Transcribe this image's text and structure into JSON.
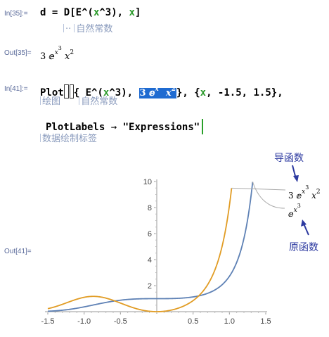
{
  "cells": [
    {
      "in_label": "In[35]:=",
      "code": {
        "lhs": "d",
        "eq": "=",
        "fn": "D",
        "lb": "[",
        "e": "E",
        "caret": "^",
        "lp": "(",
        "x": "x",
        "pow": "^3",
        "rp": ")",
        "comma": ",",
        "x2": "x",
        "rb": "]"
      },
      "hint": {
        "dots": "··",
        "text": "自然常数"
      },
      "out_label": "Out[35]=",
      "out": {
        "coef": "3",
        "e": "ⅇ",
        "x": "x",
        "exp3": "3",
        "x2": "x",
        "exp2": "2"
      }
    },
    {
      "in_label": "In[41]:=",
      "code": {
        "plot": "Plot",
        "lb": "[",
        "lbrace": "{",
        "e": "E",
        "caret": "^",
        "lp": "(",
        "x": "x",
        "pow": "^3",
        "rp": ")",
        "comma1": ",",
        "sel_coef": "3",
        "sel_e": "ⅇ",
        "sel_x": "x",
        "sel_exp3": "3",
        "sel_x2": "x",
        "sel_exp2": "2",
        "rbrace": "}",
        "comma2": ",",
        "range_lb": "{",
        "range_x": "x",
        "range_rest": ", -1.5, 1.5}",
        "trail": ","
      },
      "hints": [
        "绘图",
        "自然常数"
      ],
      "opt": {
        "name": "PlotLabels",
        "arrow": "→",
        "value": "\"Expressions\"",
        "rb": "]"
      },
      "opt_hint": "数据绘制标签",
      "out_label": "Out[41]="
    }
  ],
  "annotations": {
    "derivative": "导函数",
    "original": "原函数",
    "color": "#2d3aa0"
  },
  "curve_labels": {
    "derivative": {
      "coef": "3",
      "e": "ⅇ",
      "x": "x",
      "exp3": "3",
      "x2": "x",
      "exp2": "2"
    },
    "original": {
      "e": "ⅇ",
      "x": "x",
      "exp3": "3"
    }
  },
  "chart_data": {
    "type": "line",
    "xlim": [
      -1.5,
      1.5
    ],
    "ylim": [
      0,
      10
    ],
    "xticks": [
      -1.5,
      -1.0,
      -0.5,
      0.5,
      1.0,
      1.5
    ],
    "xtick_labels": [
      "-1.5",
      "-1.0",
      "-0.5",
      "0.5",
      "1.0",
      "1.5"
    ],
    "yticks": [
      2,
      4,
      6,
      8,
      10
    ],
    "ytick_labels": [
      "2",
      "4",
      "6",
      "8",
      "10"
    ],
    "grid": false,
    "series": [
      {
        "expr": "e^(x^3)",
        "color": "#5e81b5",
        "x_max": 1.32
      },
      {
        "expr": "3 e^(x^3) x^2",
        "color": "#e19c24",
        "x_max": 1.03
      }
    ]
  }
}
